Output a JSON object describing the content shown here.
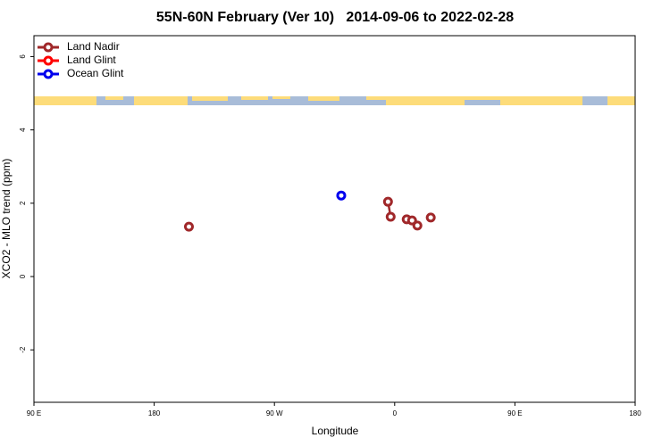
{
  "chart_data": {
    "type": "line",
    "title": "55N-60N February (Ver 10)   2014-09-06 to 2022-02-28",
    "x_label": "Longitude",
    "y_label": "XCO2 - MLO trend (ppm)",
    "xlim": [
      -270,
      180
    ],
    "xticks": [
      {
        "value": -270,
        "label": "90 E"
      },
      {
        "value": -180,
        "label": "180"
      },
      {
        "value": -90,
        "label": "90 W"
      },
      0,
      {
        "value": 90,
        "label": "90 E"
      },
      {
        "value": 180,
        "label": "180"
      }
    ],
    "ylim": [
      -3.43,
      6.57
    ],
    "yticks": [
      -2,
      0,
      2,
      4,
      6
    ],
    "legend": "top-left",
    "series": [
      {
        "name": "Land Nadir",
        "color": "#a0282a",
        "x": [
          -154,
          null,
          -5,
          -3,
          null,
          9,
          13,
          17,
          null,
          27
        ],
        "values": [
          1.36,
          null,
          2.04,
          1.63,
          null,
          1.56,
          1.53,
          1.39,
          null,
          1.61
        ]
      },
      {
        "name": "Land Glint",
        "color": "#ff0000",
        "x": [],
        "values": []
      },
      {
        "name": "Ocean Glint",
        "color": "#0000ee",
        "x": [
          -40
        ],
        "values": [
          2.21
        ]
      }
    ]
  }
}
